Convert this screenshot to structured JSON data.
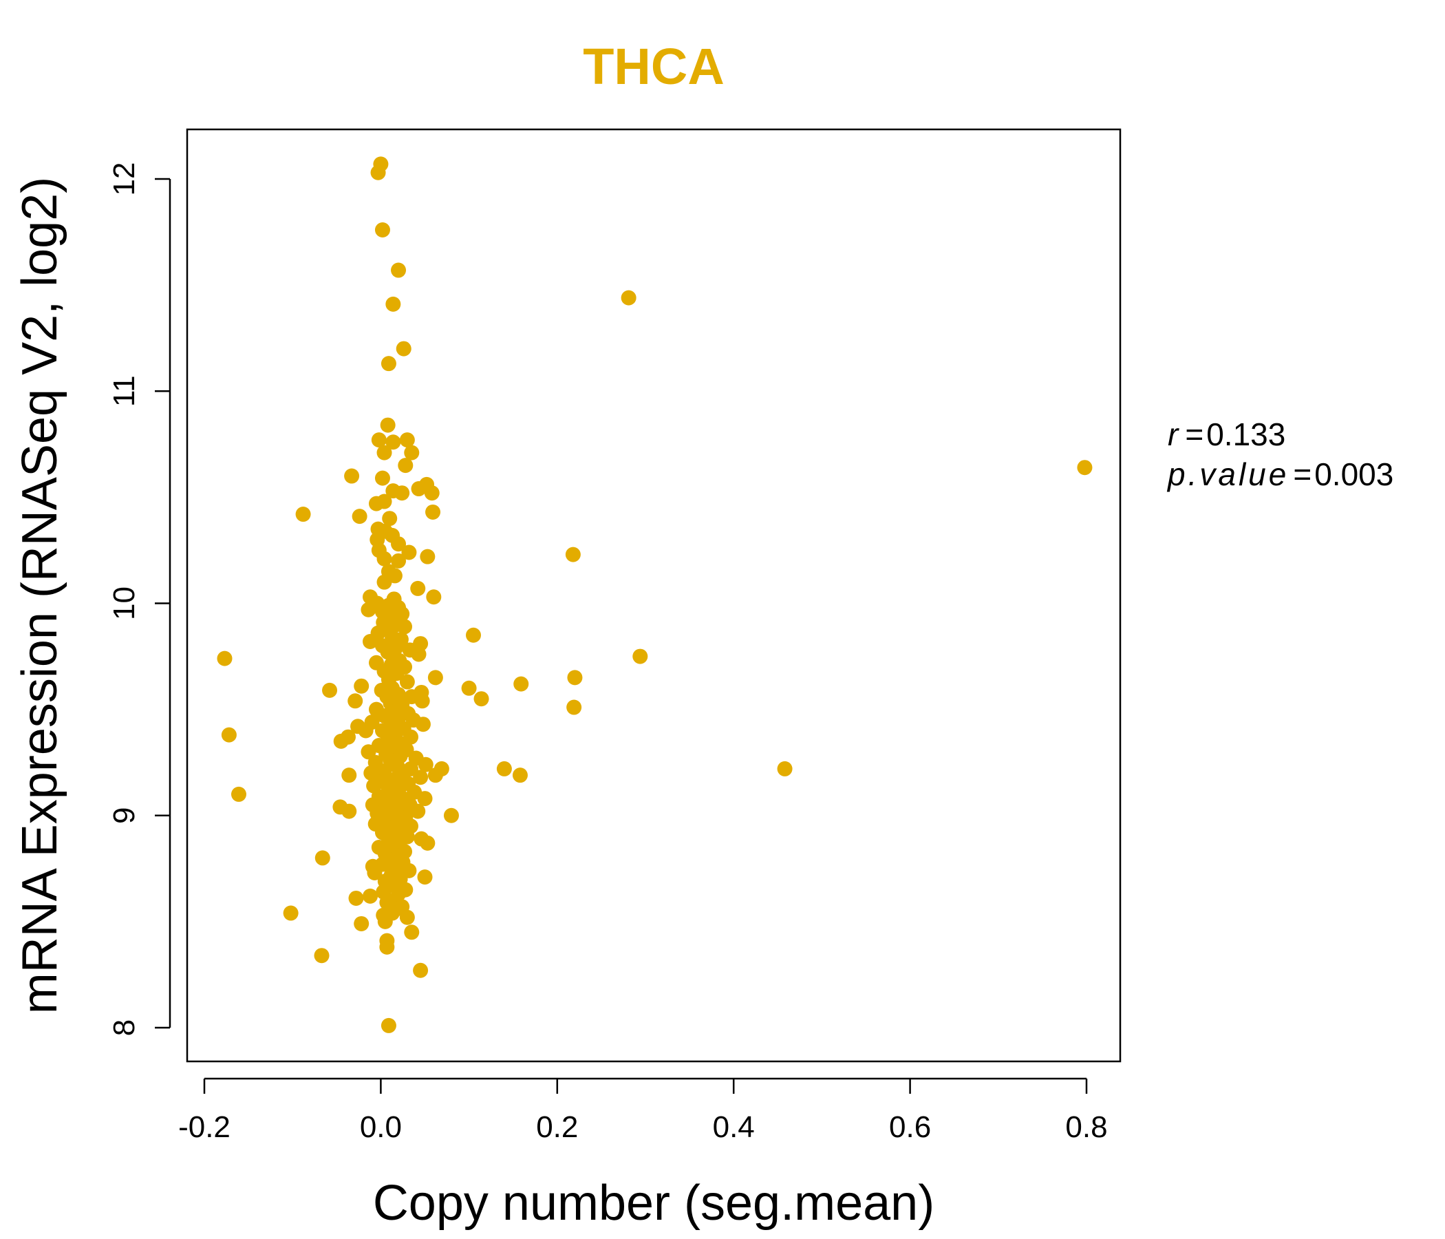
{
  "chart_data": {
    "type": "scatter",
    "title": "THCA",
    "xlabel": "Copy number (seg.mean)",
    "ylabel": "mRNA Expression (RNASeq V2, log2)",
    "xlim": [
      -0.2,
      0.84
    ],
    "ylim": [
      7.85,
      12.25
    ],
    "xticks": [
      -0.2,
      0.0,
      0.2,
      0.4,
      0.6,
      0.8
    ],
    "xtick_labels": [
      "-0.2",
      "0.0",
      "0.2",
      "0.4",
      "0.6",
      "0.8"
    ],
    "yticks": [
      8,
      9,
      10,
      11,
      12
    ],
    "ytick_labels": [
      "8",
      "9",
      "10",
      "11",
      "12"
    ],
    "grid": false,
    "point_color": "#E3AC00",
    "stats": {
      "r_label": "r",
      "r_value": "0.133",
      "p_label": "p.value",
      "p_value": "0.003"
    },
    "points": [
      [
        0.0,
        12.07
      ],
      [
        -0.003,
        12.03
      ],
      [
        0.002,
        11.76
      ],
      [
        0.02,
        11.57
      ],
      [
        0.014,
        11.41
      ],
      [
        0.026,
        11.2
      ],
      [
        0.009,
        11.13
      ],
      [
        0.008,
        10.84
      ],
      [
        -0.002,
        10.77
      ],
      [
        0.014,
        10.76
      ],
      [
        0.03,
        10.77
      ],
      [
        0.004,
        10.71
      ],
      [
        0.035,
        10.71
      ],
      [
        0.028,
        10.65
      ],
      [
        -0.033,
        10.6
      ],
      [
        0.002,
        10.59
      ],
      [
        0.043,
        10.54
      ],
      [
        0.052,
        10.56
      ],
      [
        0.058,
        10.52
      ],
      [
        0.014,
        10.53
      ],
      [
        0.024,
        10.52
      ],
      [
        -0.005,
        10.47
      ],
      [
        0.004,
        10.48
      ],
      [
        -0.088,
        10.42
      ],
      [
        -0.024,
        10.41
      ],
      [
        0.059,
        10.43
      ],
      [
        0.01,
        10.4
      ],
      [
        -0.003,
        10.35
      ],
      [
        0.005,
        10.34
      ],
      [
        0.013,
        10.32
      ],
      [
        -0.004,
        10.3
      ],
      [
        0.02,
        10.28
      ],
      [
        -0.002,
        10.25
      ],
      [
        0.032,
        10.24
      ],
      [
        0.053,
        10.22
      ],
      [
        0.218,
        10.23
      ],
      [
        0.004,
        10.21
      ],
      [
        0.02,
        10.2
      ],
      [
        0.009,
        10.15
      ],
      [
        0.016,
        10.13
      ],
      [
        0.004,
        10.1
      ],
      [
        0.042,
        10.07
      ],
      [
        0.06,
        10.03
      ],
      [
        -0.012,
        10.03
      ],
      [
        0.015,
        10.02
      ],
      [
        -0.004,
        10.0
      ],
      [
        0.009,
        9.99
      ],
      [
        0.02,
        9.98
      ],
      [
        -0.014,
        9.97
      ],
      [
        0.002,
        9.96
      ],
      [
        0.024,
        9.95
      ],
      [
        0.012,
        9.93
      ],
      [
        0.003,
        9.91
      ],
      [
        0.018,
        9.9
      ],
      [
        0.027,
        9.89
      ],
      [
        0.006,
        9.88
      ],
      [
        -0.003,
        9.86
      ],
      [
        0.105,
        9.85
      ],
      [
        0.013,
        9.84
      ],
      [
        0.023,
        9.83
      ],
      [
        -0.012,
        9.82
      ],
      [
        0.045,
        9.81
      ],
      [
        0.002,
        9.8
      ],
      [
        0.017,
        9.79
      ],
      [
        0.033,
        9.78
      ],
      [
        0.008,
        9.77
      ],
      [
        0.294,
        9.75
      ],
      [
        0.043,
        9.76
      ],
      [
        -0.177,
        9.74
      ],
      [
        0.021,
        9.73
      ],
      [
        -0.005,
        9.72
      ],
      [
        0.012,
        9.71
      ],
      [
        0.027,
        9.7
      ],
      [
        0.004,
        9.68
      ],
      [
        0.018,
        9.67
      ],
      [
        0.062,
        9.65
      ],
      [
        0.22,
        9.65
      ],
      [
        0.009,
        9.64
      ],
      [
        0.03,
        9.63
      ],
      [
        0.159,
        9.62
      ],
      [
        -0.022,
        9.61
      ],
      [
        0.013,
        9.6
      ],
      [
        0.1,
        9.6
      ],
      [
        0.001,
        9.59
      ],
      [
        -0.058,
        9.59
      ],
      [
        0.046,
        9.58
      ],
      [
        0.02,
        9.57
      ],
      [
        0.007,
        9.56
      ],
      [
        0.035,
        9.56
      ],
      [
        0.114,
        9.55
      ],
      [
        -0.029,
        9.54
      ],
      [
        0.047,
        9.54
      ],
      [
        0.011,
        9.53
      ],
      [
        0.024,
        9.52
      ],
      [
        0.219,
        9.51
      ],
      [
        -0.005,
        9.5
      ],
      [
        0.016,
        9.49
      ],
      [
        0.031,
        9.48
      ],
      [
        0.004,
        9.47
      ],
      [
        0.02,
        9.46
      ],
      [
        0.037,
        9.45
      ],
      [
        -0.01,
        9.44
      ],
      [
        0.012,
        9.43
      ],
      [
        0.048,
        9.43
      ],
      [
        -0.026,
        9.42
      ],
      [
        0.026,
        9.41
      ],
      [
        0.002,
        9.4
      ],
      [
        -0.017,
        9.4
      ],
      [
        -0.172,
        9.38
      ],
      [
        0.017,
        9.39
      ],
      [
        -0.037,
        9.37
      ],
      [
        0.034,
        9.37
      ],
      [
        0.008,
        9.36
      ],
      [
        -0.045,
        9.35
      ],
      [
        0.022,
        9.34
      ],
      [
        -0.002,
        9.33
      ],
      [
        0.014,
        9.32
      ],
      [
        0.029,
        9.31
      ],
      [
        -0.014,
        9.3
      ],
      [
        0.006,
        9.29
      ],
      [
        0.022,
        9.28
      ],
      [
        0.04,
        9.27
      ],
      [
        0.011,
        9.26
      ],
      [
        -0.006,
        9.25
      ],
      [
        0.051,
        9.24
      ],
      [
        0.019,
        9.23
      ],
      [
        0.034,
        9.22
      ],
      [
        0.14,
        9.22
      ],
      [
        0.458,
        9.22
      ],
      [
        0.069,
        9.22
      ],
      [
        0.004,
        9.21
      ],
      [
        0.026,
        9.2
      ],
      [
        -0.011,
        9.2
      ],
      [
        0.158,
        9.19
      ],
      [
        0.062,
        9.19
      ],
      [
        -0.036,
        9.19
      ],
      [
        0.045,
        9.18
      ],
      [
        0.016,
        9.17
      ],
      [
        0.002,
        9.16
      ],
      [
        0.031,
        9.15
      ],
      [
        -0.008,
        9.14
      ],
      [
        0.021,
        9.13
      ],
      [
        0.009,
        9.12
      ],
      [
        0.038,
        9.11
      ],
      [
        0.014,
        9.1
      ],
      [
        -0.161,
        9.1
      ],
      [
        -0.002,
        9.09
      ],
      [
        0.025,
        9.08
      ],
      [
        0.05,
        9.08
      ],
      [
        0.007,
        9.07
      ],
      [
        0.018,
        9.06
      ],
      [
        -0.009,
        9.05
      ],
      [
        0.033,
        9.05
      ],
      [
        -0.046,
        9.04
      ],
      [
        0.012,
        9.04
      ],
      [
        0.003,
        9.03
      ],
      [
        -0.036,
        9.02
      ],
      [
        0.022,
        9.02
      ],
      [
        0.042,
        9.02
      ],
      [
        -0.004,
        9.01
      ],
      [
        0.015,
        9.0
      ],
      [
        0.08,
        9.0
      ],
      [
        0.028,
        8.99
      ],
      [
        0.006,
        8.98
      ],
      [
        0.019,
        8.97
      ],
      [
        -0.006,
        8.96
      ],
      [
        0.034,
        8.95
      ],
      [
        0.011,
        8.94
      ],
      [
        0.024,
        8.93
      ],
      [
        0.002,
        8.92
      ],
      [
        0.016,
        8.91
      ],
      [
        0.03,
        8.9
      ],
      [
        0.046,
        8.89
      ],
      [
        0.009,
        8.88
      ],
      [
        0.053,
        8.87
      ],
      [
        0.021,
        8.86
      ],
      [
        -0.002,
        8.85
      ],
      [
        0.013,
        8.84
      ],
      [
        0.027,
        8.83
      ],
      [
        0.005,
        8.82
      ],
      [
        0.018,
        8.81
      ],
      [
        -0.066,
        8.8
      ],
      [
        0.01,
        8.79
      ],
      [
        0.025,
        8.78
      ],
      [
        0.002,
        8.77
      ],
      [
        -0.009,
        8.76
      ],
      [
        0.017,
        8.75
      ],
      [
        0.032,
        8.74
      ],
      [
        -0.007,
        8.73
      ],
      [
        0.012,
        8.72
      ],
      [
        0.05,
        8.71
      ],
      [
        0.022,
        8.7
      ],
      [
        0.005,
        8.69
      ],
      [
        0.016,
        8.68
      ],
      [
        0.009,
        8.67
      ],
      [
        0.028,
        8.65
      ],
      [
        0.003,
        8.64
      ],
      [
        0.02,
        8.63
      ],
      [
        -0.012,
        8.62
      ],
      [
        -0.028,
        8.61
      ],
      [
        0.014,
        8.6
      ],
      [
        0.007,
        8.59
      ],
      [
        0.024,
        8.57
      ],
      [
        0.018,
        8.56
      ],
      [
        -0.102,
        8.54
      ],
      [
        0.013,
        8.54
      ],
      [
        0.003,
        8.53
      ],
      [
        0.03,
        8.52
      ],
      [
        0.005,
        8.5
      ],
      [
        -0.022,
        8.49
      ],
      [
        0.035,
        8.45
      ],
      [
        0.007,
        8.41
      ],
      [
        0.007,
        8.38
      ],
      [
        -0.067,
        8.34
      ],
      [
        0.045,
        8.27
      ],
      [
        0.009,
        8.01
      ],
      [
        0.281,
        11.44
      ],
      [
        0.798,
        10.64
      ]
    ]
  }
}
